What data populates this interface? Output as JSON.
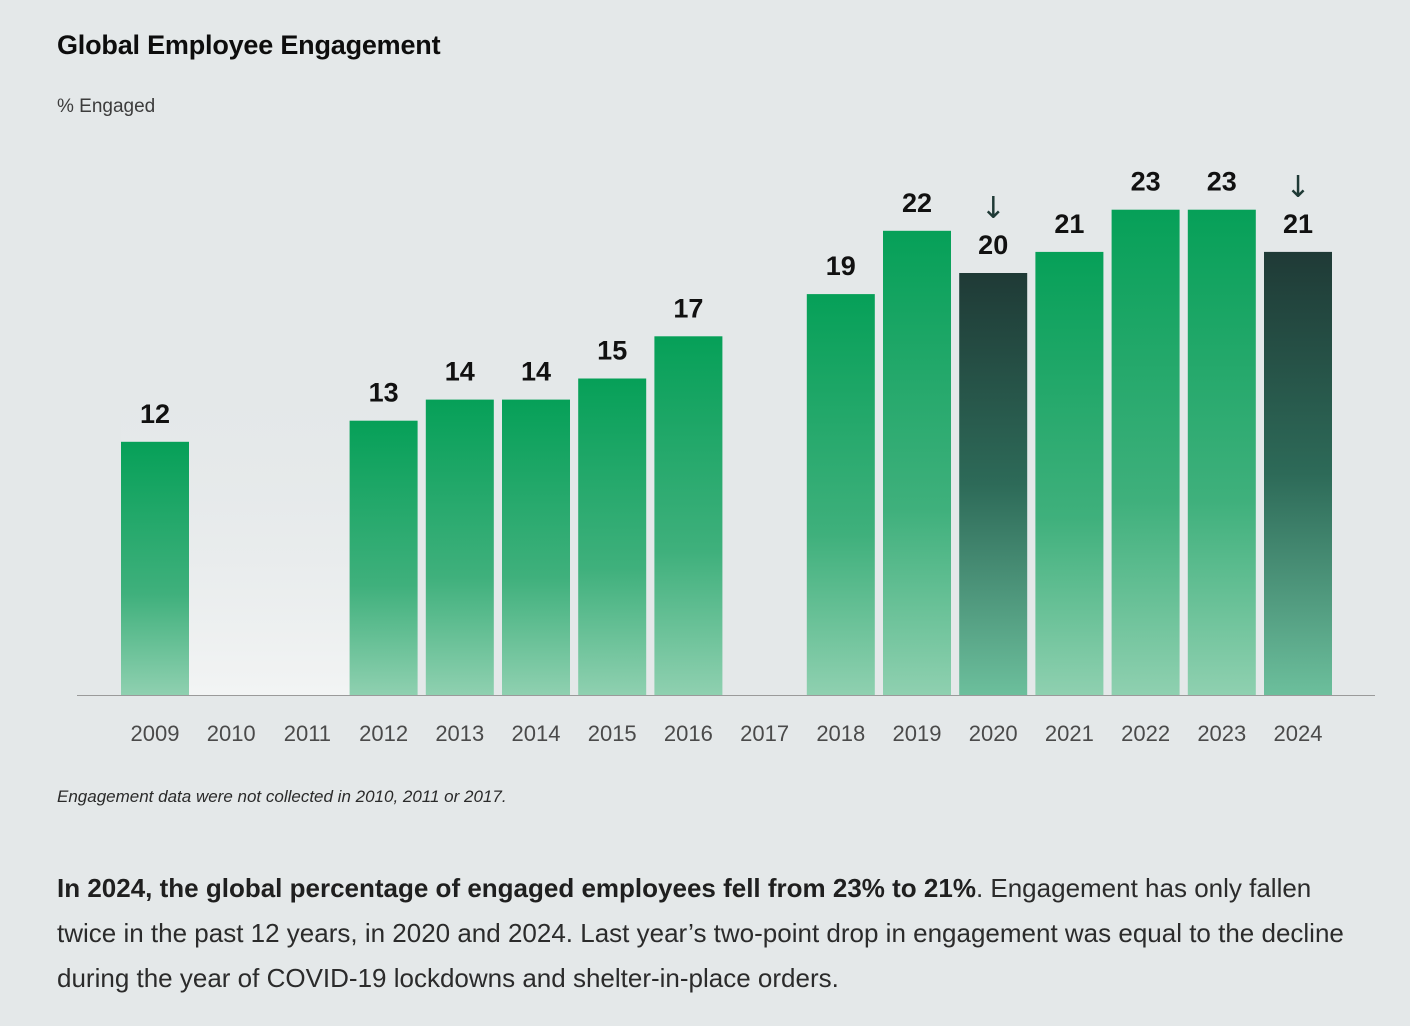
{
  "title": "Global Employee Engagement",
  "subtitle": "% Engaged",
  "note": "Engagement data were not collected in 2010, 2011 or 2017.",
  "summary": {
    "bold": "In 2024, the global percentage of engaged employees fell from 23% to 21%",
    "rest": ". Engagement has only fallen twice in the past 12 years, in 2020 and 2024. Last year’s two-point drop in engagement was equal to the decline during the year of COVID-19 lockdowns and shelter-in-place orders."
  },
  "colors": {
    "bar_green_top": "#06a058",
    "bar_green_bottom": "#7ecaa6",
    "bar_dark_top": "#1f3a36",
    "bar_dark_bottom": "#4fa88a",
    "arrow": "#1f3a36",
    "axis": "#9a9a9a"
  },
  "chart_data": {
    "type": "bar",
    "title": "Global Employee Engagement",
    "ylabel": "% Engaged",
    "xlabel": "",
    "categories": [
      "2009",
      "2010",
      "2011",
      "2012",
      "2013",
      "2014",
      "2015",
      "2016",
      "2017",
      "2018",
      "2019",
      "2020",
      "2021",
      "2022",
      "2023",
      "2024"
    ],
    "values": [
      12,
      null,
      null,
      13,
      14,
      14,
      15,
      17,
      null,
      19,
      22,
      20,
      21,
      23,
      23,
      21
    ],
    "decline_years": [
      "2020",
      "2024"
    ],
    "decline_marker": "↓",
    "ylim": [
      0,
      23
    ],
    "grid": false,
    "legend": "none"
  }
}
